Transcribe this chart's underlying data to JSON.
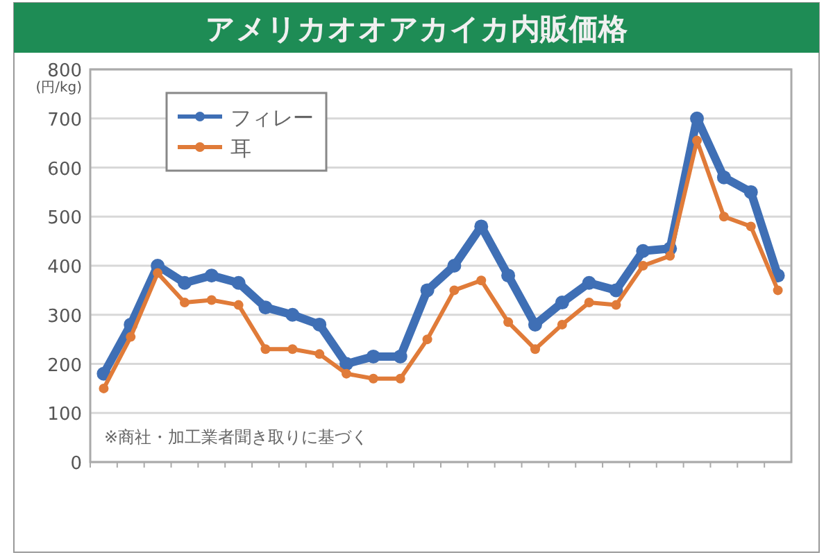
{
  "chart_data": {
    "type": "line",
    "title": "アメリカオオアカイカ内販価格",
    "ylabel": "(円/kg)",
    "categories": [
      null,
      null,
      null,
      null,
      null,
      null,
      null,
      null,
      null,
      null,
      null,
      null,
      null,
      null,
      null,
      null,
      null,
      null,
      null,
      null,
      null,
      null,
      null,
      null,
      null,
      null
    ],
    "series": [
      {
        "name": "フィレー",
        "color": "#3f6fb5",
        "values": [
          180,
          280,
          400,
          365,
          380,
          365,
          315,
          300,
          280,
          200,
          215,
          215,
          350,
          400,
          480,
          380,
          280,
          325,
          365,
          350,
          430,
          435,
          700,
          580,
          550,
          380
        ]
      },
      {
        "name": "耳",
        "color": "#e07b39",
        "values": [
          150,
          255,
          385,
          325,
          330,
          320,
          230,
          230,
          220,
          180,
          170,
          170,
          250,
          350,
          370,
          285,
          230,
          280,
          325,
          320,
          400,
          420,
          655,
          500,
          480,
          350
        ]
      }
    ],
    "ylim": [
      0,
      800
    ],
    "yticks": [
      0,
      100,
      200,
      300,
      400,
      500,
      600,
      700,
      800
    ],
    "grid": "y",
    "legend": "top left",
    "marker": "circle",
    "line_style": "solid",
    "annotations": [
      "※商社・加工業者聞き取りに基づく"
    ]
  }
}
